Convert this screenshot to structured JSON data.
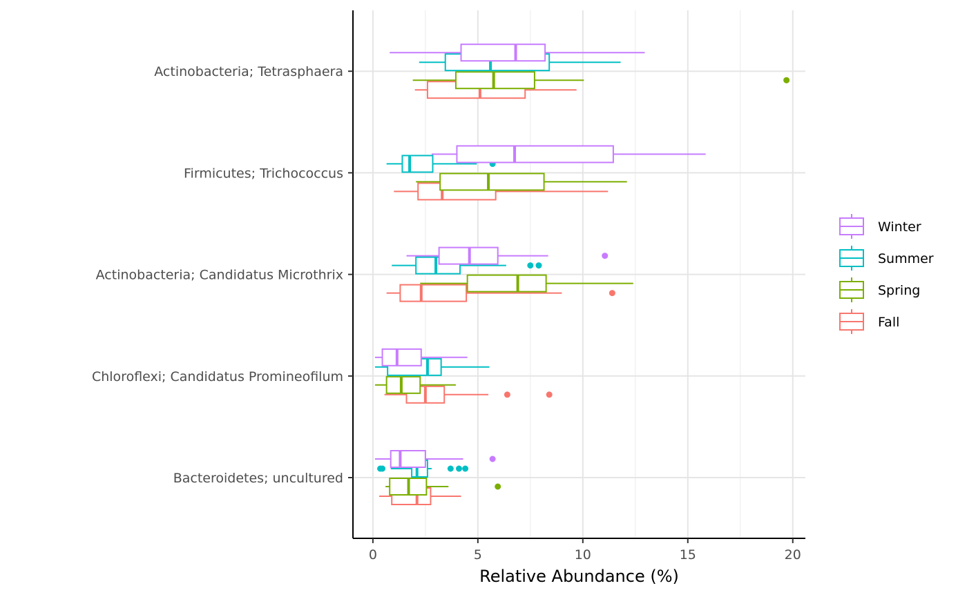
{
  "chart_data": {
    "type": "boxplot",
    "orientation": "horizontal",
    "title": "",
    "xlabel": "Relative Abundance (%)",
    "ylabel": "",
    "xlim": [
      -0.95,
      20.6
    ],
    "x_ticks": [
      0,
      5,
      10,
      15,
      20
    ],
    "grid": true,
    "legend_position": "right",
    "categories": [
      "Bacteroidetes; uncultured",
      "Chloroflexi; Candidatus Promineofilum",
      "Actinobacteria; Candidatus Microthrix",
      "Firmicutes; Trichococcus",
      "Actinobacteria; Tetrasphaera"
    ],
    "series": [
      {
        "name": "Fall",
        "color": "#F8766D",
        "boxes": [
          {
            "min": 0.3,
            "q1": 0.9,
            "median": 2.1,
            "q3": 2.75,
            "max": 4.2,
            "outliers": []
          },
          {
            "min": 0.55,
            "q1": 1.6,
            "median": 2.5,
            "q3": 3.4,
            "max": 5.5,
            "outliers": [
              6.4,
              8.4
            ]
          },
          {
            "min": 0.65,
            "q1": 1.3,
            "median": 2.3,
            "q3": 4.45,
            "max": 9.0,
            "outliers": [
              11.4
            ]
          },
          {
            "min": 1.0,
            "q1": 2.15,
            "median": 3.3,
            "q3": 5.85,
            "max": 11.2,
            "outliers": []
          },
          {
            "min": 2.0,
            "q1": 2.6,
            "median": 5.1,
            "q3": 7.25,
            "max": 9.7,
            "outliers": []
          }
        ]
      },
      {
        "name": "Spring",
        "color": "#7CAE00",
        "boxes": [
          {
            "min": 0.6,
            "q1": 0.8,
            "median": 1.7,
            "q3": 2.55,
            "max": 3.6,
            "outliers": [
              5.95
            ]
          },
          {
            "min": 0.1,
            "q1": 0.65,
            "median": 1.35,
            "q3": 2.25,
            "max": 3.95,
            "outliers": []
          },
          {
            "min": 2.25,
            "q1": 4.5,
            "median": 6.9,
            "q3": 8.25,
            "max": 12.4,
            "outliers": []
          },
          {
            "min": 2.05,
            "q1": 3.2,
            "median": 5.5,
            "q3": 8.15,
            "max": 12.1,
            "outliers": []
          },
          {
            "min": 1.9,
            "q1": 3.95,
            "median": 5.75,
            "q3": 7.7,
            "max": 10.05,
            "outliers": [
              19.7
            ]
          }
        ]
      },
      {
        "name": "Summer",
        "color": "#00BFC4",
        "boxes": [
          {
            "min": 0.85,
            "q1": 1.85,
            "median": 2.1,
            "q3": 2.6,
            "max": 2.8,
            "outliers": [
              0.35,
              0.45,
              3.7,
              4.1,
              4.4
            ]
          },
          {
            "min": 0.1,
            "q1": 0.7,
            "median": 2.6,
            "q3": 3.25,
            "max": 5.55,
            "outliers": []
          },
          {
            "min": 0.9,
            "q1": 2.05,
            "median": 3.0,
            "q3": 4.15,
            "max": 6.35,
            "outliers": [
              7.5,
              7.9
            ]
          },
          {
            "min": 0.65,
            "q1": 1.4,
            "median": 1.75,
            "q3": 2.85,
            "max": 4.95,
            "outliers": [
              5.7
            ]
          },
          {
            "min": 2.2,
            "q1": 3.45,
            "median": 5.6,
            "q3": 8.4,
            "max": 11.8,
            "outliers": []
          }
        ]
      },
      {
        "name": "Winter",
        "color": "#C77CFF",
        "boxes": [
          {
            "min": 0.1,
            "q1": 0.85,
            "median": 1.3,
            "q3": 2.5,
            "max": 4.3,
            "outliers": [
              5.7
            ]
          },
          {
            "min": 0.1,
            "q1": 0.45,
            "median": 1.15,
            "q3": 2.3,
            "max": 4.5,
            "outliers": []
          },
          {
            "min": 1.6,
            "q1": 3.15,
            "median": 4.6,
            "q3": 5.95,
            "max": 8.35,
            "outliers": [
              11.05
            ]
          },
          {
            "min": 2.8,
            "q1": 4.0,
            "median": 6.75,
            "q3": 11.45,
            "max": 15.85,
            "outliers": []
          },
          {
            "min": 0.8,
            "q1": 4.2,
            "median": 6.8,
            "q3": 8.2,
            "max": 12.95,
            "outliers": []
          }
        ]
      }
    ],
    "legend_entries": [
      "Winter",
      "Summer",
      "Spring",
      "Fall"
    ]
  }
}
